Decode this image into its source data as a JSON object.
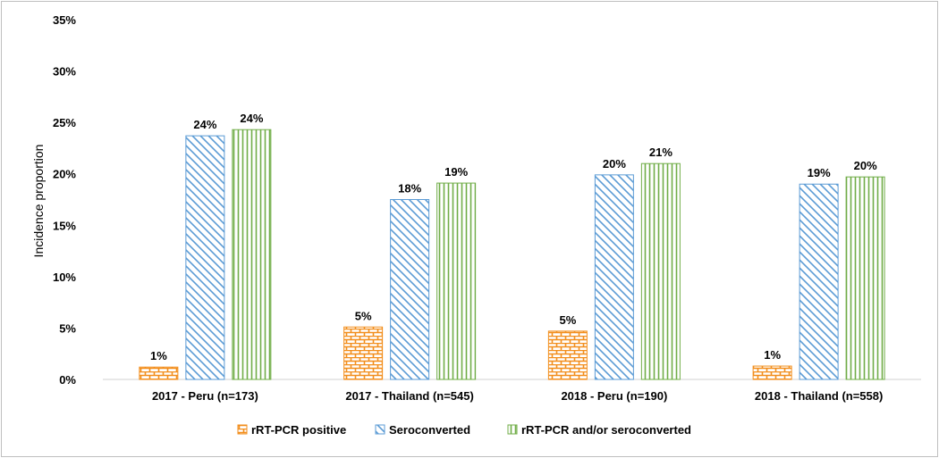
{
  "chart_data": {
    "type": "bar",
    "ylabel": "Incidence proportion",
    "xlabel": "",
    "ylim": [
      0,
      35
    ],
    "y_ticks": [
      "0%",
      "5%",
      "10%",
      "15%",
      "20%",
      "25%",
      "30%",
      "35%"
    ],
    "grid": false,
    "legend_position": "bottom",
    "categories": [
      "2017 - Peru (n=173)",
      "2017 - Thailand (n=545)",
      "2018 - Peru (n=190)",
      "2018 - Thailand (n=558)"
    ],
    "series": [
      {
        "name": "rRT-PCR positive",
        "pattern": "brick",
        "color": "#f28e1c",
        "values": [
          1.2,
          5.1,
          4.7,
          1.3
        ],
        "labels": [
          "1%",
          "5%",
          "5%",
          "1%"
        ]
      },
      {
        "name": "Seroconverted",
        "pattern": "diagonal",
        "color": "#5b9bd5",
        "values": [
          23.7,
          17.5,
          19.9,
          19.0
        ],
        "labels": [
          "24%",
          "18%",
          "20%",
          "19%"
        ]
      },
      {
        "name": "rRT-PCR and/or seroconverted",
        "pattern": "vertical",
        "color": "#70ad47",
        "values": [
          24.3,
          19.1,
          21.0,
          19.7
        ],
        "labels": [
          "24%",
          "19%",
          "21%",
          "20%"
        ]
      }
    ]
  }
}
